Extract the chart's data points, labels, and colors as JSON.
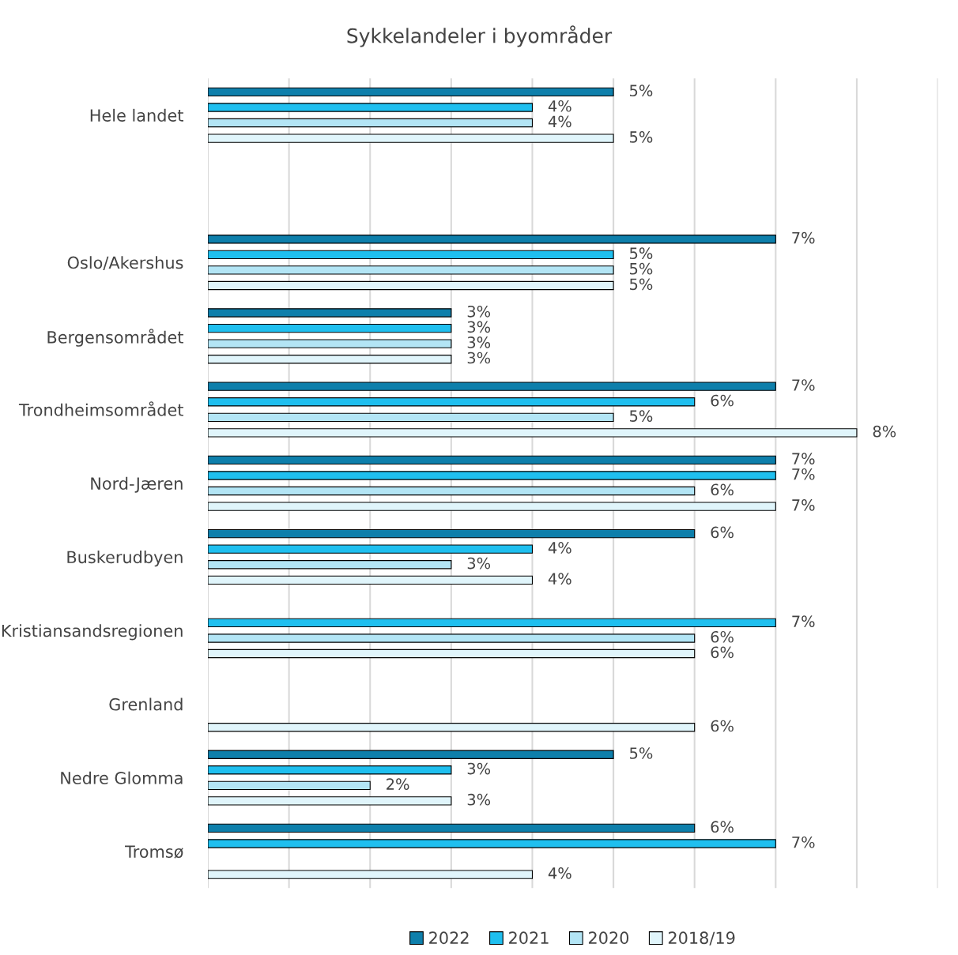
{
  "chart_data": {
    "type": "bar",
    "orientation": "horizontal",
    "title": "Sykkelandeler i byområder",
    "categories": [
      "Hele landet",
      null,
      "Oslo/Akershus",
      "Bergensområdet",
      "Trondheimsområdet",
      "Nord-Jæren",
      "Buskerudbyen",
      "Kristiansandsregionen",
      "Grenland",
      "Nedre Glomma",
      "Tromsø"
    ],
    "series": [
      {
        "name": "2022",
        "color": "#0e7fab",
        "values": [
          5,
          null,
          7,
          3,
          7,
          7,
          6,
          null,
          null,
          5,
          6
        ],
        "value_labels": [
          "5%",
          null,
          "7%",
          "3%",
          "7%",
          "7%",
          "6%",
          null,
          null,
          "5%",
          "6%"
        ]
      },
      {
        "name": "2021",
        "color": "#1fbfef",
        "values": [
          4,
          null,
          5,
          3,
          6,
          7,
          4,
          7,
          null,
          3,
          7
        ],
        "value_labels": [
          "4%",
          null,
          "5%",
          "3%",
          "6%",
          "7%",
          "4%",
          "7%",
          null,
          "3%",
          "7%"
        ]
      },
      {
        "name": "2020",
        "color": "#b3e5f5",
        "values": [
          4,
          null,
          5,
          3,
          5,
          6,
          3,
          6,
          null,
          2,
          null
        ],
        "value_labels": [
          "4%",
          null,
          "5%",
          "3%",
          "5%",
          "6%",
          "3%",
          "6%",
          null,
          "2%",
          null
        ]
      },
      {
        "name": "2018/19",
        "color": "#e0f5fb",
        "values": [
          5,
          null,
          5,
          3,
          8,
          7,
          4,
          6,
          6,
          3,
          4
        ],
        "value_labels": [
          "5%",
          null,
          "5%",
          "3%",
          "8%",
          "7%",
          "4%",
          "6%",
          "6%",
          "3%",
          "4%"
        ]
      }
    ],
    "xlim": [
      0,
      9
    ],
    "xticks": [
      {
        "value": 0,
        "label": null
      },
      {
        "value": 1,
        "label": null
      },
      {
        "value": 2,
        "label": null
      },
      {
        "value": 3,
        "label": null
      },
      {
        "value": 4,
        "label": null
      },
      {
        "value": 5,
        "label": null
      },
      {
        "value": 6,
        "label": null
      },
      {
        "value": 7,
        "label": null
      },
      {
        "value": 8,
        "label": null
      },
      {
        "value": 9,
        "label": null
      }
    ],
    "tick_labels": "y",
    "grid": "x",
    "legend": "bottom"
  }
}
